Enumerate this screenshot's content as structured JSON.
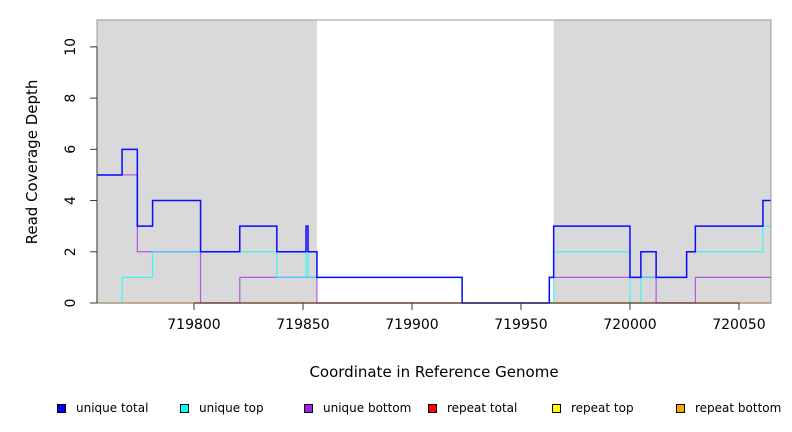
{
  "chart_data": {
    "type": "line",
    "step": true,
    "xlabel": "Coordinate in Reference Genome",
    "ylabel": "Read Coverage Depth",
    "xlim": [
      719755.5,
      720064.7
    ],
    "ylim": [
      0,
      11.05
    ],
    "xticks": [
      719800,
      719850,
      719900,
      719950,
      720000,
      720050
    ],
    "yticks": [
      0,
      2,
      4,
      6,
      8,
      10
    ],
    "shaded_regions": [
      [
        719755.5,
        719856.4
      ],
      [
        719965,
        720064.7
      ]
    ],
    "shade_color": "#D9D9D9",
    "x_end": 720064.7,
    "series": [
      {
        "name": "unique total",
        "color": "#0000FF",
        "x": [
          719755.5,
          719767,
          719774,
          719781,
          719803,
          719821,
          719838,
          719851.4,
          719852.3,
          719856.4,
          719923,
          719963,
          719965,
          720000,
          720005,
          720012,
          720026,
          720030,
          720061
        ],
        "values": [
          5,
          6,
          3,
          4,
          2,
          3,
          2,
          3,
          2,
          1,
          0,
          1,
          3,
          1,
          2,
          1,
          2,
          3,
          4
        ]
      },
      {
        "name": "unique top",
        "color": "#00FFFF",
        "x": [
          719755.5,
          719767,
          719781,
          719838,
          719851.4,
          719852.3,
          719923,
          719965,
          720000,
          720005,
          720026,
          720061
        ],
        "values": [
          0,
          1,
          2,
          1,
          2,
          1,
          0,
          2,
          0,
          1,
          2,
          3
        ]
      },
      {
        "name": "unique bottom",
        "color": "#A020F0",
        "x": [
          719755.5,
          719774,
          719803,
          719821,
          719856.4,
          719963,
          720012,
          720030
        ],
        "values": [
          5,
          2,
          0,
          1,
          0,
          1,
          0,
          1
        ]
      },
      {
        "name": "repeat total",
        "color": "#FF0000",
        "x": [
          719755.5
        ],
        "values": [
          0
        ]
      },
      {
        "name": "repeat top",
        "color": "#FFFF00",
        "x": [
          719755.5
        ],
        "values": [
          0
        ]
      },
      {
        "name": "repeat bottom",
        "color": "#FFA500",
        "x": [
          719755.5
        ],
        "values": [
          0
        ]
      }
    ],
    "legend_position": "bottom"
  }
}
